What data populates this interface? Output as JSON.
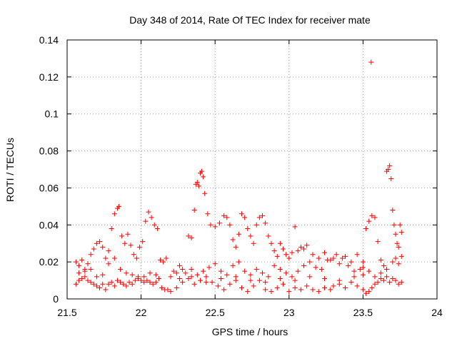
{
  "chart_data": {
    "type": "scatter",
    "title": "Day 348 of 2014, Rate Of TEC Index for receiver mate",
    "xlabel": "GPS time / hours",
    "ylabel": "ROTI / TECUs",
    "xlim": [
      21.5,
      24
    ],
    "ylim": [
      0,
      0.14
    ],
    "x_ticks": [
      21.5,
      22,
      22.5,
      23,
      23.5,
      24
    ],
    "x_tick_labels": [
      "21.5",
      "22",
      "22.5",
      "23",
      "23.5",
      "24"
    ],
    "y_ticks": [
      0,
      0.02,
      0.04,
      0.06,
      0.08,
      0.1,
      0.12,
      0.14
    ],
    "y_tick_labels": [
      "0",
      "0.02",
      "0.04",
      "0.06",
      "0.08",
      "0.1",
      "0.12",
      "0.14"
    ],
    "grid": true,
    "marker": "+",
    "color": "#ff0000",
    "series": [
      {
        "name": "ROTI",
        "points": [
          [
            21.56,
            0.02
          ],
          [
            21.58,
            0.018
          ],
          [
            21.6,
            0.021
          ],
          [
            21.62,
            0.016
          ],
          [
            21.64,
            0.019
          ],
          [
            21.66,
            0.024
          ],
          [
            21.68,
            0.027
          ],
          [
            21.7,
            0.03
          ],
          [
            21.72,
            0.031
          ],
          [
            21.74,
            0.028
          ],
          [
            21.76,
            0.022
          ],
          [
            21.78,
            0.026
          ],
          [
            21.8,
            0.038
          ],
          [
            21.82,
            0.046
          ],
          [
            21.84,
            0.049
          ],
          [
            21.85,
            0.05
          ],
          [
            21.87,
            0.034
          ],
          [
            21.89,
            0.03
          ],
          [
            21.91,
            0.035
          ],
          [
            21.93,
            0.029
          ],
          [
            21.95,
            0.024
          ],
          [
            21.97,
            0.022
          ],
          [
            21.99,
            0.028
          ],
          [
            22.01,
            0.031
          ],
          [
            22.03,
            0.042
          ],
          [
            22.05,
            0.047
          ],
          [
            22.07,
            0.044
          ],
          [
            22.09,
            0.04
          ],
          [
            22.11,
            0.038
          ],
          [
            22.13,
            0.021
          ],
          [
            22.15,
            0.02
          ],
          [
            22.17,
            0.022
          ],
          [
            21.56,
            0.008
          ],
          [
            21.58,
            0.01
          ],
          [
            21.6,
            0.011
          ],
          [
            21.62,
            0.012
          ],
          [
            21.64,
            0.01
          ],
          [
            21.66,
            0.009
          ],
          [
            21.68,
            0.008
          ],
          [
            21.7,
            0.007
          ],
          [
            21.72,
            0.006
          ],
          [
            21.74,
            0.008
          ],
          [
            21.76,
            0.005
          ],
          [
            21.78,
            0.008
          ],
          [
            21.8,
            0.009
          ],
          [
            21.82,
            0.007
          ],
          [
            21.84,
            0.01
          ],
          [
            21.86,
            0.009
          ],
          [
            21.88,
            0.008
          ],
          [
            21.9,
            0.007
          ],
          [
            21.92,
            0.009
          ],
          [
            21.94,
            0.008
          ],
          [
            21.96,
            0.01
          ],
          [
            21.98,
            0.012
          ],
          [
            22.0,
            0.01
          ],
          [
            22.02,
            0.009
          ],
          [
            22.04,
            0.01
          ],
          [
            22.06,
            0.009
          ],
          [
            22.08,
            0.008
          ],
          [
            22.1,
            0.009
          ],
          [
            22.12,
            0.011
          ],
          [
            22.14,
            0.006
          ],
          [
            22.16,
            0.005
          ],
          [
            22.18,
            0.005
          ],
          [
            21.58,
            0.014
          ],
          [
            21.62,
            0.015
          ],
          [
            21.66,
            0.016
          ],
          [
            21.7,
            0.012
          ],
          [
            21.74,
            0.013
          ],
          [
            21.78,
            0.019
          ],
          [
            21.82,
            0.022
          ],
          [
            21.86,
            0.016
          ],
          [
            21.9,
            0.014
          ],
          [
            21.94,
            0.013
          ],
          [
            21.98,
            0.011
          ],
          [
            22.02,
            0.012
          ],
          [
            22.06,
            0.014
          ],
          [
            22.1,
            0.013
          ],
          [
            22.2,
            0.012
          ],
          [
            22.24,
            0.014
          ],
          [
            22.28,
            0.016
          ],
          [
            22.32,
            0.034
          ],
          [
            22.34,
            0.033
          ],
          [
            22.36,
            0.048
          ],
          [
            22.37,
            0.062
          ],
          [
            22.38,
            0.063
          ],
          [
            22.39,
            0.061
          ],
          [
            22.4,
            0.068
          ],
          [
            22.41,
            0.069
          ],
          [
            22.42,
            0.066
          ],
          [
            22.43,
            0.057
          ],
          [
            22.45,
            0.046
          ],
          [
            22.47,
            0.04
          ],
          [
            22.5,
            0.039
          ],
          [
            22.53,
            0.041
          ],
          [
            22.56,
            0.045
          ],
          [
            22.58,
            0.044
          ],
          [
            22.6,
            0.04
          ],
          [
            22.62,
            0.032
          ],
          [
            22.64,
            0.028
          ],
          [
            22.66,
            0.035
          ],
          [
            22.68,
            0.046
          ],
          [
            22.7,
            0.044
          ],
          [
            22.72,
            0.038
          ],
          [
            22.74,
            0.034
          ],
          [
            22.76,
            0.03
          ],
          [
            22.78,
            0.04
          ],
          [
            22.8,
            0.044
          ],
          [
            22.82,
            0.045
          ],
          [
            22.84,
            0.041
          ],
          [
            22.86,
            0.034
          ],
          [
            22.88,
            0.03
          ],
          [
            22.9,
            0.026
          ],
          [
            22.92,
            0.023
          ],
          [
            22.94,
            0.03
          ],
          [
            22.96,
            0.027
          ],
          [
            22.98,
            0.024
          ],
          [
            23.0,
            0.022
          ],
          [
            23.02,
            0.025
          ],
          [
            23.04,
            0.039
          ],
          [
            23.06,
            0.026
          ],
          [
            23.08,
            0.028
          ],
          [
            23.1,
            0.027
          ],
          [
            23.12,
            0.029
          ],
          [
            22.2,
            0.004
          ],
          [
            22.24,
            0.006
          ],
          [
            22.28,
            0.009
          ],
          [
            22.32,
            0.011
          ],
          [
            22.36,
            0.008
          ],
          [
            22.4,
            0.01
          ],
          [
            22.44,
            0.012
          ],
          [
            22.48,
            0.009
          ],
          [
            22.52,
            0.007
          ],
          [
            22.56,
            0.005
          ],
          [
            22.6,
            0.008
          ],
          [
            22.64,
            0.01
          ],
          [
            22.68,
            0.006
          ],
          [
            22.72,
            0.004
          ],
          [
            22.76,
            0.007
          ],
          [
            22.8,
            0.01
          ],
          [
            22.84,
            0.005
          ],
          [
            22.88,
            0.004
          ],
          [
            22.92,
            0.006
          ],
          [
            22.96,
            0.008
          ],
          [
            23.0,
            0.004
          ],
          [
            23.04,
            0.006
          ],
          [
            23.08,
            0.005
          ],
          [
            23.12,
            0.007
          ],
          [
            23.16,
            0.005
          ],
          [
            23.2,
            0.004
          ],
          [
            23.24,
            0.006
          ],
          [
            23.28,
            0.005
          ],
          [
            22.22,
            0.015
          ],
          [
            22.26,
            0.018
          ],
          [
            22.3,
            0.014
          ],
          [
            22.34,
            0.016
          ],
          [
            22.38,
            0.013
          ],
          [
            22.42,
            0.015
          ],
          [
            22.46,
            0.017
          ],
          [
            22.5,
            0.019
          ],
          [
            22.54,
            0.015
          ],
          [
            22.58,
            0.013
          ],
          [
            22.62,
            0.018
          ],
          [
            22.66,
            0.02
          ],
          [
            22.7,
            0.015
          ],
          [
            22.74,
            0.013
          ],
          [
            22.78,
            0.016
          ],
          [
            22.82,
            0.014
          ],
          [
            22.86,
            0.012
          ],
          [
            22.9,
            0.018
          ],
          [
            22.94,
            0.016
          ],
          [
            22.98,
            0.014
          ],
          [
            23.02,
            0.012
          ],
          [
            23.06,
            0.015
          ],
          [
            23.1,
            0.018
          ],
          [
            23.14,
            0.02
          ],
          [
            23.18,
            0.017
          ],
          [
            23.22,
            0.016
          ],
          [
            23.26,
            0.021
          ],
          [
            23.3,
            0.022
          ],
          [
            23.34,
            0.019
          ],
          [
            23.38,
            0.023
          ],
          [
            23.42,
            0.02
          ],
          [
            23.46,
            0.024
          ],
          [
            23.5,
            0.02
          ],
          [
            22.26,
            0.011
          ],
          [
            22.34,
            0.012
          ],
          [
            22.44,
            0.009
          ],
          [
            22.54,
            0.011
          ],
          [
            22.64,
            0.012
          ],
          [
            22.74,
            0.01
          ],
          [
            22.84,
            0.009
          ],
          [
            22.94,
            0.011
          ],
          [
            23.04,
            0.01
          ],
          [
            23.14,
            0.012
          ],
          [
            23.24,
            0.011
          ],
          [
            23.34,
            0.01
          ],
          [
            23.44,
            0.012
          ],
          [
            23.16,
            0.024
          ],
          [
            23.2,
            0.022
          ],
          [
            23.24,
            0.025
          ],
          [
            23.28,
            0.021
          ],
          [
            23.32,
            0.024
          ],
          [
            23.36,
            0.022
          ],
          [
            23.4,
            0.018
          ],
          [
            23.44,
            0.015
          ],
          [
            23.48,
            0.016
          ],
          [
            23.5,
            0.017
          ],
          [
            23.52,
            0.038
          ],
          [
            23.54,
            0.042
          ],
          [
            23.555,
            0.128
          ],
          [
            23.56,
            0.045
          ],
          [
            23.58,
            0.044
          ],
          [
            23.6,
            0.031
          ],
          [
            23.62,
            0.021
          ],
          [
            23.64,
            0.018
          ],
          [
            23.66,
            0.069
          ],
          [
            23.67,
            0.07
          ],
          [
            23.68,
            0.072
          ],
          [
            23.69,
            0.065
          ],
          [
            23.7,
            0.048
          ],
          [
            23.71,
            0.04
          ],
          [
            23.72,
            0.035
          ],
          [
            23.73,
            0.03
          ],
          [
            23.74,
            0.028
          ],
          [
            23.75,
            0.04
          ],
          [
            23.76,
            0.036
          ],
          [
            23.3,
            0.007
          ],
          [
            23.34,
            0.008
          ],
          [
            23.38,
            0.006
          ],
          [
            23.42,
            0.009
          ],
          [
            23.46,
            0.007
          ],
          [
            23.5,
            0.005
          ],
          [
            23.52,
            0.003
          ],
          [
            23.54,
            0.004
          ],
          [
            23.56,
            0.006
          ],
          [
            23.58,
            0.008
          ],
          [
            23.6,
            0.009
          ],
          [
            23.62,
            0.011
          ],
          [
            23.64,
            0.01
          ],
          [
            23.66,
            0.012
          ],
          [
            23.68,
            0.009
          ],
          [
            23.7,
            0.011
          ],
          [
            23.72,
            0.01
          ],
          [
            23.74,
            0.008
          ],
          [
            23.76,
            0.009
          ],
          [
            23.5,
            0.013
          ],
          [
            23.54,
            0.015
          ],
          [
            23.58,
            0.012
          ],
          [
            23.62,
            0.014
          ],
          [
            23.66,
            0.016
          ],
          [
            23.7,
            0.02
          ],
          [
            23.72,
            0.022
          ],
          [
            23.74,
            0.019
          ],
          [
            23.76,
            0.023
          ]
        ]
      }
    ]
  }
}
